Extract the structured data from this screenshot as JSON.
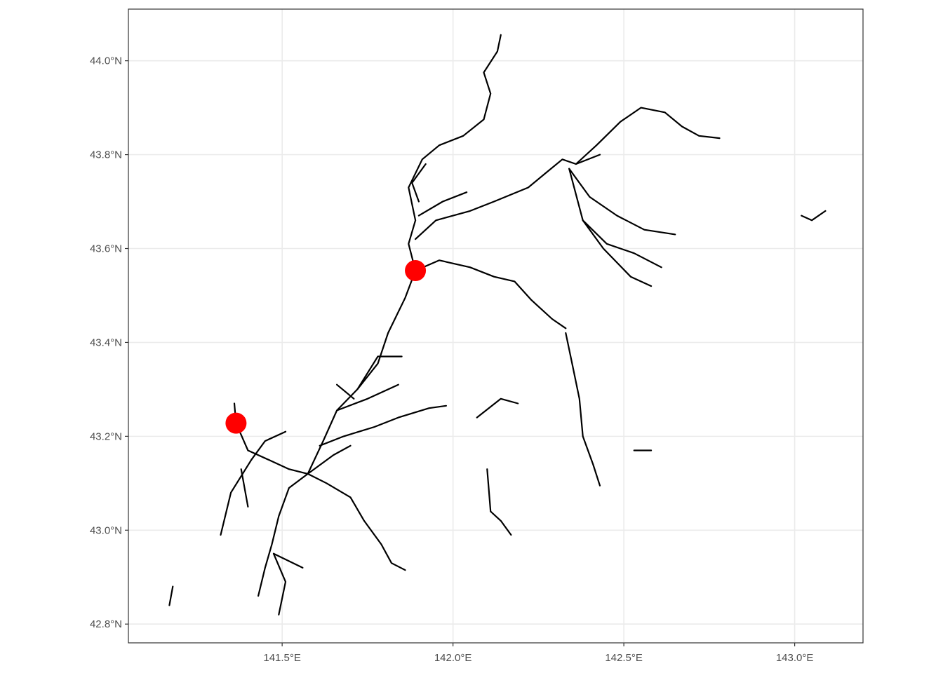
{
  "map": {
    "x_axis": {
      "range": [
        141.05,
        143.2
      ],
      "ticks": [
        {
          "value": 141.5,
          "label": "141.5°E"
        },
        {
          "value": 142.0,
          "label": "142.0°E"
        },
        {
          "value": 142.5,
          "label": "142.5°E"
        },
        {
          "value": 143.0,
          "label": "143.0°E"
        }
      ]
    },
    "y_axis": {
      "range": [
        42.76,
        44.11
      ],
      "ticks": [
        {
          "value": 42.8,
          "label": "42.8°N"
        },
        {
          "value": 43.0,
          "label": "43.0°N"
        },
        {
          "value": 43.2,
          "label": "43.2°N"
        },
        {
          "value": 43.4,
          "label": "43.4°N"
        },
        {
          "value": 43.6,
          "label": "43.6°N"
        },
        {
          "value": 43.8,
          "label": "43.8°N"
        },
        {
          "value": 44.0,
          "label": "44.0°N"
        }
      ]
    },
    "grid": true,
    "point_color": "#ff0000",
    "line_color": "#000000",
    "points": [
      {
        "lon": 141.365,
        "lat": 43.228
      },
      {
        "lon": 141.89,
        "lat": 43.553
      }
    ],
    "rivers": [
      [
        [
          141.575,
          43.12
        ],
        [
          141.62,
          43.19
        ],
        [
          141.66,
          43.255
        ],
        [
          141.72,
          43.3
        ],
        [
          141.78,
          43.355
        ],
        [
          141.81,
          43.42
        ],
        [
          141.86,
          43.495
        ],
        [
          141.89,
          43.553
        ],
        [
          141.87,
          43.61
        ],
        [
          141.89,
          43.66
        ],
        [
          141.87,
          43.73
        ],
        [
          141.91,
          43.79
        ],
        [
          141.96,
          43.82
        ],
        [
          142.03,
          43.84
        ],
        [
          142.09,
          43.875
        ],
        [
          142.11,
          43.93
        ],
        [
          142.09,
          43.975
        ],
        [
          142.13,
          44.02
        ],
        [
          142.14,
          44.055
        ]
      ],
      [
        [
          141.575,
          43.12
        ],
        [
          141.52,
          43.13
        ],
        [
          141.46,
          43.15
        ],
        [
          141.4,
          43.17
        ],
        [
          141.365,
          43.228
        ],
        [
          141.36,
          43.27
        ]
      ],
      [
        [
          141.575,
          43.12
        ],
        [
          141.52,
          43.09
        ],
        [
          141.49,
          43.03
        ],
        [
          141.47,
          42.97
        ],
        [
          141.45,
          42.92
        ],
        [
          141.43,
          42.86
        ]
      ],
      [
        [
          141.475,
          42.95
        ],
        [
          141.51,
          42.89
        ],
        [
          141.49,
          42.82
        ]
      ],
      [
        [
          141.475,
          42.95
        ],
        [
          141.56,
          42.92
        ]
      ],
      [
        [
          141.575,
          43.12
        ],
        [
          141.63,
          43.1
        ],
        [
          141.7,
          43.07
        ],
        [
          141.74,
          43.02
        ],
        [
          141.79,
          42.97
        ],
        [
          141.82,
          42.93
        ],
        [
          141.86,
          42.915
        ]
      ],
      [
        [
          141.575,
          43.12
        ],
        [
          141.65,
          43.16
        ],
        [
          141.7,
          43.18
        ]
      ],
      [
        [
          141.61,
          43.18
        ],
        [
          141.68,
          43.2
        ],
        [
          141.77,
          43.22
        ],
        [
          141.84,
          43.24
        ],
        [
          141.93,
          43.26
        ],
        [
          141.98,
          43.265
        ]
      ],
      [
        [
          141.66,
          43.255
        ],
        [
          141.75,
          43.28
        ],
        [
          141.84,
          43.31
        ]
      ],
      [
        [
          141.72,
          43.3
        ],
        [
          141.78,
          43.37
        ],
        [
          141.85,
          43.37
        ]
      ],
      [
        [
          141.71,
          43.28
        ],
        [
          141.66,
          43.31
        ]
      ],
      [
        [
          141.89,
          43.553
        ],
        [
          141.96,
          43.575
        ],
        [
          142.05,
          43.56
        ],
        [
          142.12,
          43.54
        ],
        [
          142.18,
          43.53
        ],
        [
          142.23,
          43.49
        ],
        [
          142.29,
          43.45
        ],
        [
          142.33,
          43.43
        ]
      ],
      [
        [
          142.33,
          43.42
        ],
        [
          142.35,
          43.35
        ],
        [
          142.37,
          43.28
        ],
        [
          142.38,
          43.2
        ],
        [
          142.41,
          43.14
        ],
        [
          142.43,
          43.095
        ]
      ],
      [
        [
          141.89,
          43.62
        ],
        [
          141.95,
          43.66
        ],
        [
          142.05,
          43.68
        ],
        [
          142.12,
          43.7
        ],
        [
          142.22,
          43.73
        ],
        [
          142.27,
          43.76
        ],
        [
          142.32,
          43.79
        ],
        [
          142.36,
          43.78
        ],
        [
          142.43,
          43.8
        ]
      ],
      [
        [
          142.36,
          43.78
        ],
        [
          142.42,
          43.82
        ],
        [
          142.49,
          43.87
        ],
        [
          142.55,
          43.9
        ],
        [
          142.62,
          43.89
        ],
        [
          142.67,
          43.86
        ],
        [
          142.72,
          43.84
        ],
        [
          142.78,
          43.835
        ]
      ],
      [
        [
          142.34,
          43.77
        ],
        [
          142.4,
          43.71
        ],
        [
          142.48,
          43.67
        ],
        [
          142.56,
          43.64
        ],
        [
          142.65,
          43.63
        ]
      ],
      [
        [
          142.34,
          43.77
        ],
        [
          142.38,
          43.66
        ],
        [
          142.44,
          43.6
        ],
        [
          142.52,
          43.54
        ],
        [
          142.58,
          43.52
        ]
      ],
      [
        [
          142.38,
          43.66
        ],
        [
          142.45,
          43.61
        ],
        [
          142.53,
          43.59
        ],
        [
          142.61,
          43.56
        ]
      ],
      [
        [
          141.9,
          43.67
        ],
        [
          141.97,
          43.7
        ],
        [
          142.04,
          43.72
        ]
      ],
      [
        [
          141.92,
          43.78
        ],
        [
          141.88,
          43.74
        ],
        [
          141.9,
          43.7
        ]
      ],
      [
        [
          141.41,
          43.15
        ],
        [
          141.45,
          43.19
        ],
        [
          141.51,
          43.21
        ]
      ],
      [
        [
          141.41,
          43.15
        ],
        [
          141.35,
          43.08
        ],
        [
          141.32,
          42.99
        ]
      ],
      [
        [
          141.38,
          43.13
        ],
        [
          141.4,
          43.05
        ]
      ],
      [
        [
          142.1,
          43.13
        ],
        [
          142.11,
          43.04
        ],
        [
          142.14,
          43.02
        ],
        [
          142.17,
          42.99
        ]
      ],
      [
        [
          142.07,
          43.24
        ],
        [
          142.14,
          43.28
        ],
        [
          142.19,
          43.27
        ]
      ],
      [
        [
          142.53,
          43.17
        ],
        [
          142.58,
          43.17
        ]
      ],
      [
        [
          143.02,
          43.67
        ],
        [
          143.05,
          43.66
        ],
        [
          143.09,
          43.68
        ]
      ],
      [
        [
          141.17,
          42.84
        ],
        [
          141.18,
          42.88
        ]
      ]
    ]
  }
}
